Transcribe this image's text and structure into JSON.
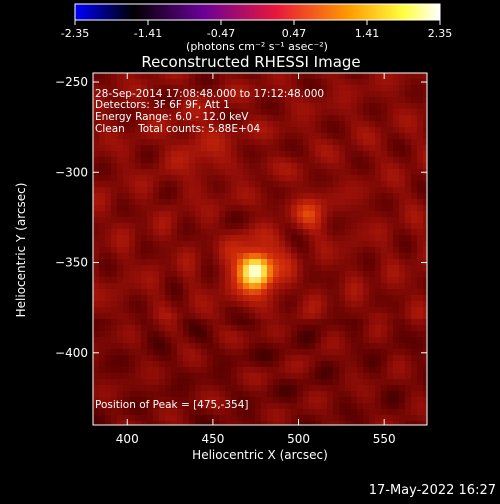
{
  "colorbar": {
    "ticks": [
      "-2.35",
      "-1.41",
      "-0.47",
      "0.47",
      "1.41",
      "2.35"
    ],
    "unit_label": "(photons cm⁻² s⁻¹ asec⁻²)",
    "colormap": [
      "#0000ff",
      "#000000",
      "#6a0098",
      "#e6183a",
      "#ff9a00",
      "#ffff40",
      "#ffffff"
    ]
  },
  "plot": {
    "title": "Reconstructed RHESSI Image",
    "xlabel": "Heliocentric X (arcsec)",
    "ylabel": "Heliocentric Y (arcsec)",
    "info": [
      "28-Sep-2014 17:08:48.000 to 17:12:48.000",
      "Detectors: 3F 6F 9F, Att 1",
      "Energy Range: 6.0 - 12.0 keV",
      "Clean    Total counts: 5.88E+04"
    ],
    "peak_label": "Position of Peak = [475,-354]"
  },
  "footer": {
    "timestamp": "17-May-2022 16:27"
  },
  "chart_data": {
    "type": "heatmap",
    "title": "Reconstructed RHESSI Image",
    "xlabel": "Heliocentric X (arcsec)",
    "ylabel": "Heliocentric Y (arcsec)",
    "xlim": [
      380,
      575
    ],
    "ylim": [
      -440,
      -245
    ],
    "xticks": [
      400,
      450,
      500,
      550
    ],
    "yticks": [
      -250,
      -300,
      -350,
      -400
    ],
    "colorbar_range": [
      -2.35,
      2.35
    ],
    "colorbar_ticks": [
      -2.35,
      -1.41,
      -0.47,
      0.47,
      1.41,
      2.35
    ],
    "colorbar_unit": "(photons cm⁻² s⁻¹ asec⁻²)",
    "sources": [
      {
        "x": 475,
        "y": -354,
        "peak": 2.35
      },
      {
        "x": 507,
        "y": -323,
        "peak": 1.2
      },
      {
        "x": 442,
        "y": -285,
        "peak": 0.9
      }
    ],
    "peak_position": [
      475,
      -354
    ]
  }
}
